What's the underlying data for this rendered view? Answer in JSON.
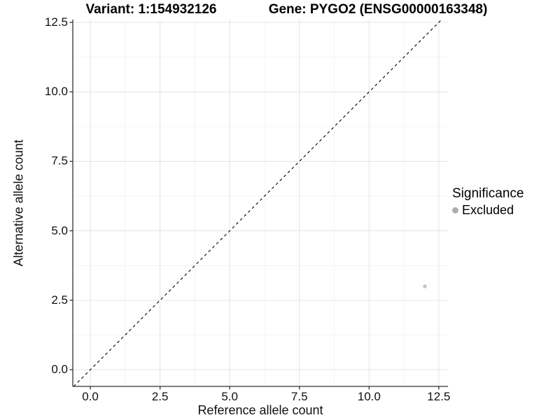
{
  "chart_data": {
    "type": "scatter",
    "title_variant": "Variant: 1:154932126",
    "title_gene": "Gene: PYGO2 (ENSG00000163348)",
    "xlabel": "Reference allele count",
    "ylabel": "Alternative allele count",
    "x_ticks": [
      0,
      2.5,
      5,
      7.5,
      10,
      12.5
    ],
    "x_tick_labels": [
      "0.0",
      "2.5",
      "5.0",
      "7.5",
      "10.0",
      "12.5"
    ],
    "y_ticks": [
      0,
      2.5,
      5,
      7.5,
      10,
      12.5
    ],
    "y_tick_labels": [
      "0.0",
      "2.5",
      "5.0",
      "7.5",
      "10.0",
      "12.5"
    ],
    "xlim": [
      -0.63,
      12.83
    ],
    "ylim": [
      -0.6,
      12.6
    ],
    "grid": "major+minor",
    "minor_ticks": [
      1.25,
      3.75,
      6.25,
      8.75,
      11.25
    ],
    "reference_line": {
      "type": "identity y=x",
      "style": "dashed",
      "color": "#000000"
    },
    "points": [
      {
        "x": 12,
        "y": 3,
        "significance": "Excluded",
        "color": "#c3c3c3"
      }
    ],
    "legend": {
      "title": "Significance",
      "position": "right",
      "entries": [
        {
          "label": "Excluded",
          "color": "#aeaeae"
        }
      ]
    },
    "colors": {
      "grid_major": "#e4e4e4",
      "grid_minor": "#f2f2f2",
      "axis_line": "#333333",
      "tick_mark": "#333333",
      "text": "#000000",
      "background": "#ffffff"
    }
  }
}
